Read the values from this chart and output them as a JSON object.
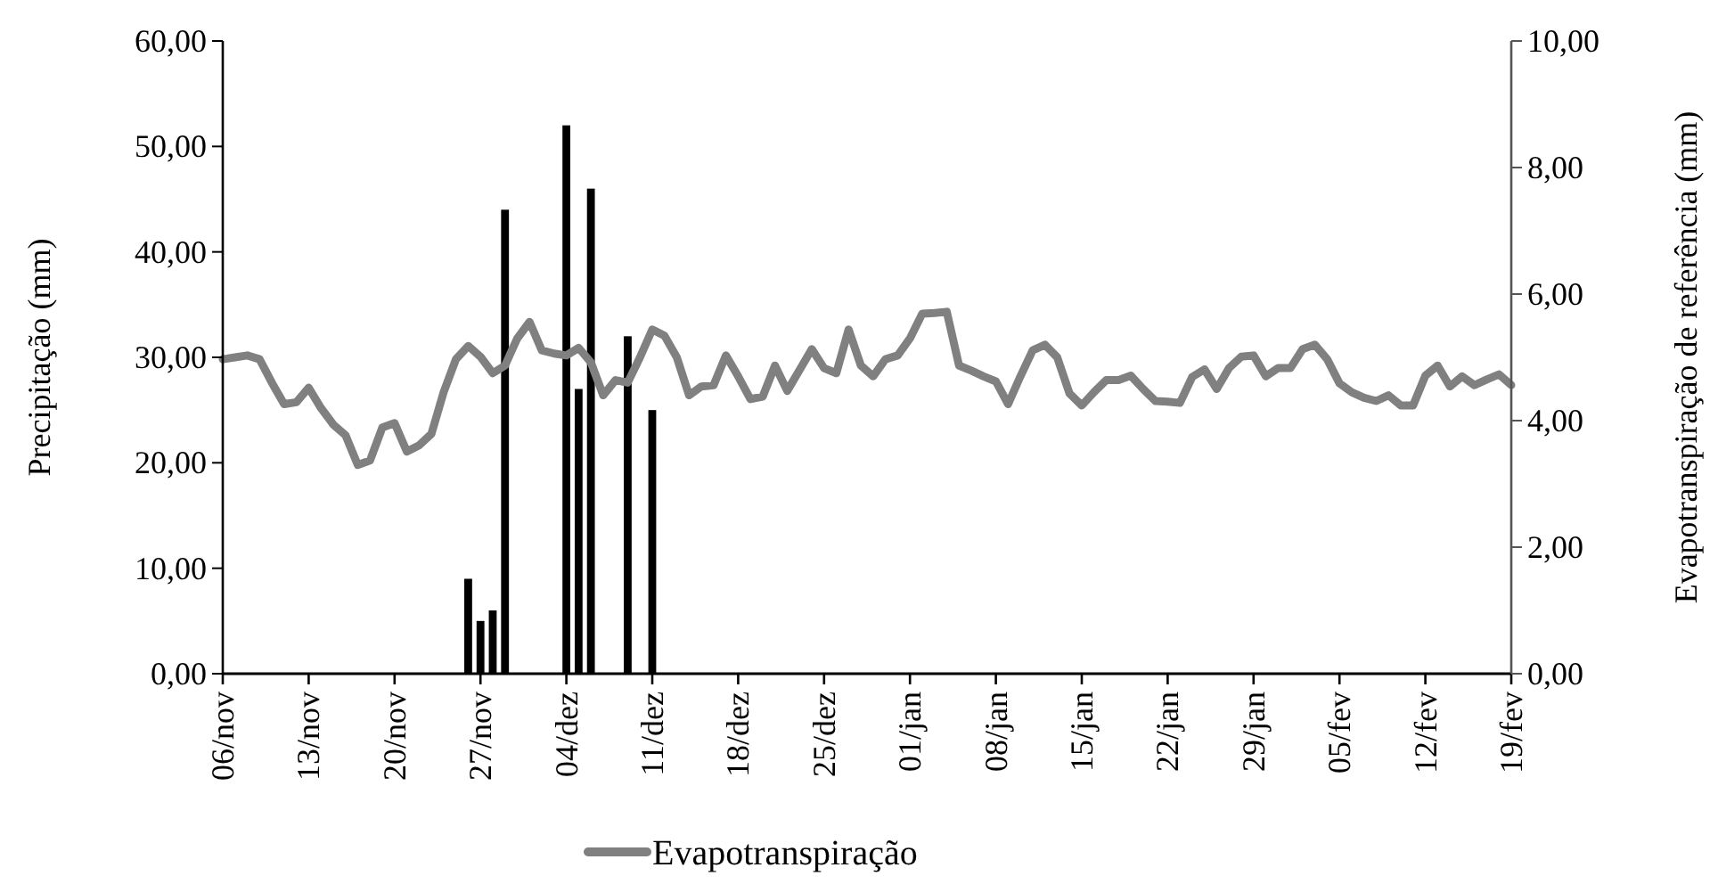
{
  "chart_data": {
    "type": "bar",
    "ylabel": "Precipitação (mm)",
    "y2label": "Evapotranspiração de referência (mm)",
    "categories": [
      "06/nov",
      null,
      null,
      null,
      null,
      null,
      null,
      "13/nov",
      null,
      null,
      null,
      null,
      null,
      null,
      "20/nov",
      null,
      null,
      null,
      null,
      null,
      null,
      "27/nov",
      null,
      null,
      null,
      null,
      null,
      null,
      "04/dez",
      null,
      null,
      null,
      null,
      null,
      null,
      "11/dez",
      null,
      null,
      null,
      null,
      null,
      null,
      "18/dez",
      null,
      null,
      null,
      null,
      null,
      null,
      "25/dez",
      null,
      null,
      null,
      null,
      null,
      null,
      "01/jan",
      null,
      null,
      null,
      null,
      null,
      null,
      "08/jan",
      null,
      null,
      null,
      null,
      null,
      null,
      "15/jan",
      null,
      null,
      null,
      null,
      null,
      null,
      "22/jan",
      null,
      null,
      null,
      null,
      null,
      null,
      "29/jan",
      null,
      null,
      null,
      null,
      null,
      null,
      "05/fev",
      null,
      null,
      null,
      null,
      null,
      null,
      "12/fev",
      null,
      null,
      null,
      null,
      null,
      null,
      "19/fev"
    ],
    "ylim": [
      0,
      60
    ],
    "yticks": [
      {
        "value": 0,
        "label": "0,00"
      },
      {
        "value": 10,
        "label": "10,00"
      },
      {
        "value": 20,
        "label": "20,00"
      },
      {
        "value": 30,
        "label": "30,00"
      },
      {
        "value": 40,
        "label": "40,00"
      },
      {
        "value": 50,
        "label": "50,00"
      },
      {
        "value": 60,
        "label": "60,00"
      }
    ],
    "y2lim": [
      0,
      10
    ],
    "y2ticks": [
      {
        "value": 0,
        "label": "0,00"
      },
      {
        "value": 2,
        "label": "2,00"
      },
      {
        "value": 4,
        "label": "4,00"
      },
      {
        "value": 6,
        "label": "6,00"
      },
      {
        "value": 8,
        "label": "8,00"
      },
      {
        "value": 10,
        "label": "10,00"
      }
    ],
    "legend": "bottom",
    "series": [
      {
        "color": "#000000",
        "values": [
          null,
          null,
          null,
          null,
          null,
          null,
          null,
          null,
          null,
          null,
          null,
          null,
          null,
          null,
          null,
          null,
          null,
          null,
          null,
          null,
          9,
          5,
          6,
          44,
          null,
          null,
          null,
          null,
          52,
          27,
          46,
          null,
          null,
          32,
          null,
          25,
          null,
          null,
          null,
          null,
          null,
          null,
          null,
          null,
          null,
          null,
          null,
          null,
          null,
          null,
          null,
          null,
          null,
          null,
          null,
          null,
          null,
          null,
          null,
          null,
          null,
          null,
          null,
          null,
          null,
          null,
          null,
          null,
          null,
          null,
          null,
          null,
          null,
          null,
          null,
          null,
          null,
          null,
          null,
          null,
          null,
          null,
          null,
          null,
          null,
          null,
          null,
          null,
          null,
          null,
          null,
          null,
          null,
          null,
          null,
          null,
          null,
          null,
          null,
          null,
          null,
          null,
          null,
          null,
          null,
          null
        ]
      },
      {
        "type": "line",
        "axis": "y2",
        "name": "Evapotranspiração",
        "color": "#808080",
        "values": [
          4.97,
          5.0,
          5.03,
          4.97,
          4.6,
          4.26,
          4.29,
          4.52,
          4.2,
          3.94,
          3.77,
          3.3,
          3.37,
          3.89,
          3.96,
          3.51,
          3.61,
          3.79,
          4.45,
          4.97,
          5.18,
          5.01,
          4.75,
          4.87,
          5.3,
          5.56,
          5.11,
          5.06,
          5.03,
          5.15,
          4.92,
          4.4,
          4.64,
          4.6,
          5.0,
          5.44,
          5.34,
          5.0,
          4.4,
          4.54,
          4.56,
          5.03,
          4.7,
          4.34,
          4.38,
          4.87,
          4.47,
          4.8,
          5.13,
          4.83,
          4.75,
          5.44,
          4.87,
          4.7,
          4.97,
          5.03,
          5.3,
          5.69,
          5.7,
          5.72,
          4.87,
          4.79,
          4.7,
          4.62,
          4.26,
          4.7,
          5.11,
          5.2,
          5.0,
          4.43,
          4.24,
          4.45,
          4.64,
          4.64,
          4.71,
          4.5,
          4.31,
          4.3,
          4.28,
          4.69,
          4.81,
          4.5,
          4.83,
          5.01,
          5.03,
          4.7,
          4.83,
          4.83,
          5.13,
          5.2,
          4.97,
          4.59,
          4.45,
          4.36,
          4.31,
          4.4,
          4.24,
          4.24,
          4.71,
          4.87,
          4.54,
          4.7,
          4.56,
          4.65,
          4.73,
          4.56
        ]
      }
    ]
  }
}
